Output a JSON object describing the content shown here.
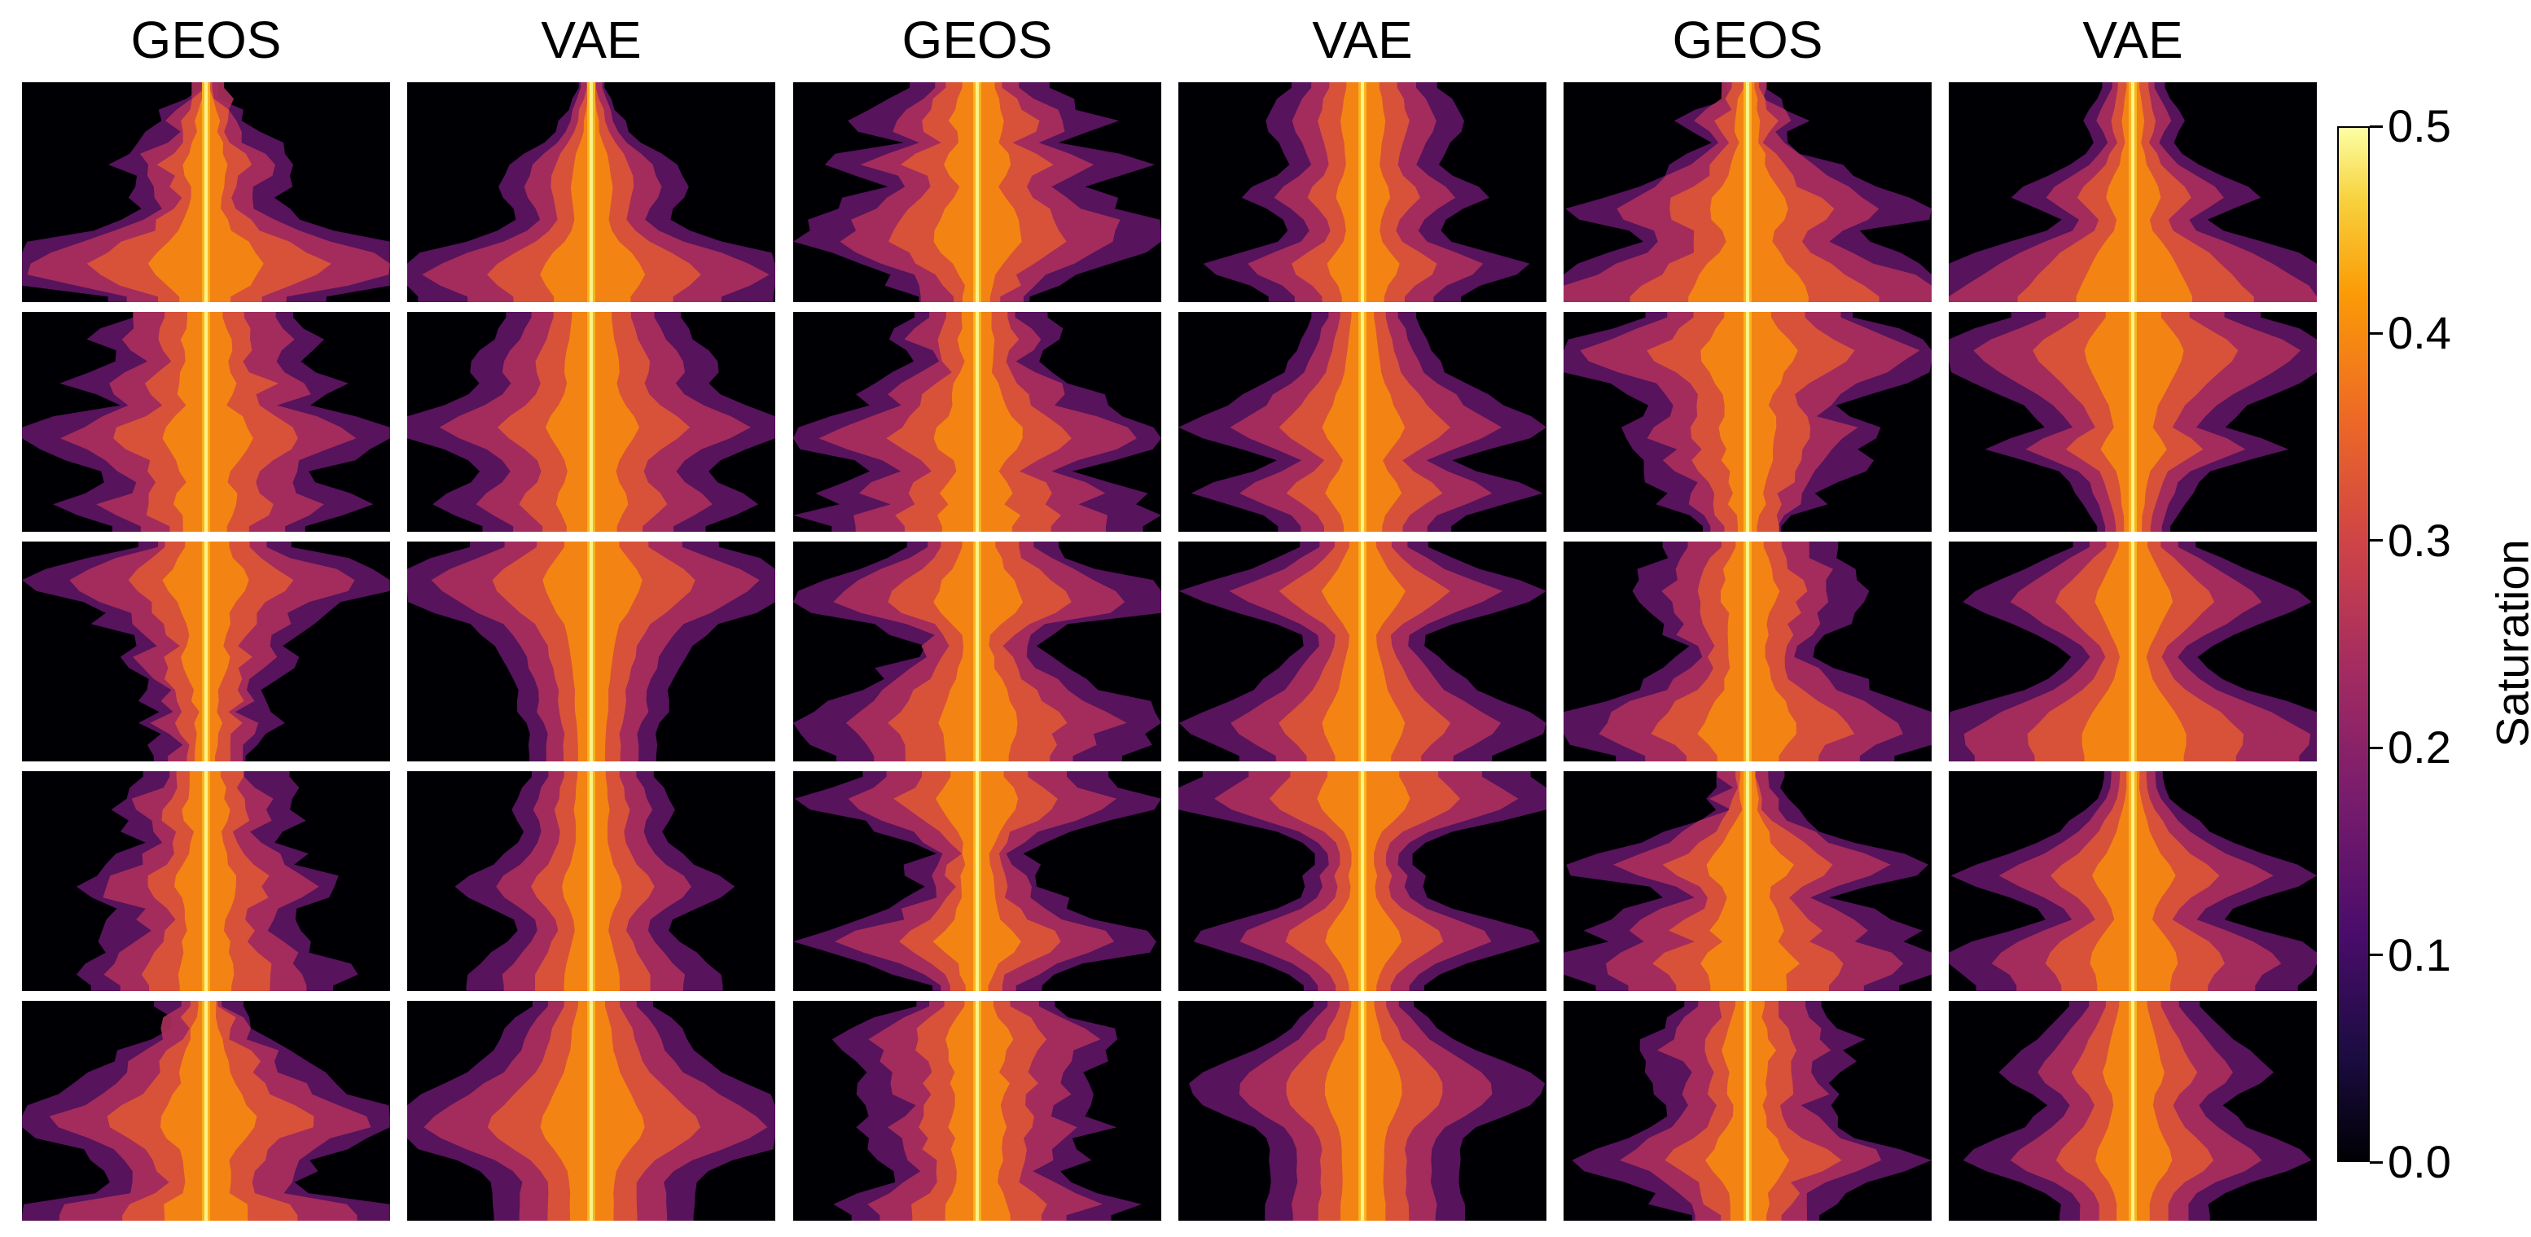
{
  "column_titles": [
    "GEOS",
    "VAE",
    "GEOS",
    "VAE",
    "GEOS",
    "VAE"
  ],
  "colorbar": {
    "label": "Saturation",
    "ticks": [
      "0.0",
      "0.1",
      "0.2",
      "0.3",
      "0.4",
      "0.5"
    ],
    "range": [
      0.0,
      0.5
    ],
    "colormap": "inferno"
  },
  "chart_data": {
    "type": "heatmap",
    "layout": {
      "rows": 5,
      "columns": 6
    },
    "colormap": "inferno",
    "value_range": [
      0.0,
      0.5
    ],
    "colorbar_label": "Saturation",
    "column_titles": [
      "GEOS",
      "VAE",
      "GEOS",
      "VAE",
      "GEOS",
      "VAE"
    ],
    "panels": [
      [
        {
          "model": "GEOS",
          "profile": [
            0.02,
            0.03,
            0.05,
            0.08,
            0.08,
            0.1,
            0.14,
            0.16,
            0.13,
            0.12,
            0.1,
            0.12,
            0.16,
            0.2,
            0.28,
            0.36,
            0.42,
            0.38,
            0.3,
            0.18
          ],
          "rough": true
        },
        {
          "model": "VAE",
          "profile": [
            0.02,
            0.03,
            0.04,
            0.05,
            0.06,
            0.08,
            0.11,
            0.13,
            0.14,
            0.15,
            0.14,
            0.13,
            0.12,
            0.15,
            0.2,
            0.28,
            0.34,
            0.38,
            0.34,
            0.28
          ],
          "rough": false
        },
        {
          "model": "GEOS",
          "profile": [
            0.1,
            0.14,
            0.16,
            0.2,
            0.18,
            0.14,
            0.22,
            0.26,
            0.2,
            0.16,
            0.2,
            0.24,
            0.28,
            0.3,
            0.32,
            0.26,
            0.2,
            0.15,
            0.12,
            0.1
          ],
          "rough": true
        },
        {
          "model": "VAE",
          "profile": [
            0.12,
            0.14,
            0.15,
            0.16,
            0.15,
            0.14,
            0.13,
            0.12,
            0.14,
            0.18,
            0.2,
            0.16,
            0.13,
            0.12,
            0.14,
            0.2,
            0.26,
            0.24,
            0.18,
            0.15
          ],
          "rough": false
        },
        {
          "model": "GEOS",
          "profile": [
            0.04,
            0.06,
            0.08,
            0.1,
            0.08,
            0.07,
            0.1,
            0.12,
            0.16,
            0.2,
            0.26,
            0.3,
            0.26,
            0.2,
            0.18,
            0.22,
            0.28,
            0.34,
            0.4,
            0.44
          ],
          "rough": true
        },
        {
          "model": "VAE",
          "profile": [
            0.05,
            0.06,
            0.07,
            0.08,
            0.07,
            0.06,
            0.08,
            0.1,
            0.14,
            0.18,
            0.2,
            0.16,
            0.12,
            0.14,
            0.2,
            0.26,
            0.3,
            0.34,
            0.38,
            0.42
          ],
          "rough": false
        }
      ],
      [
        {
          "model": "GEOS",
          "profile": [
            0.14,
            0.16,
            0.18,
            0.16,
            0.14,
            0.18,
            0.22,
            0.2,
            0.16,
            0.24,
            0.3,
            0.32,
            0.28,
            0.22,
            0.18,
            0.16,
            0.2,
            0.24,
            0.2,
            0.16
          ],
          "rough": true
        },
        {
          "model": "VAE",
          "profile": [
            0.14,
            0.15,
            0.16,
            0.18,
            0.2,
            0.2,
            0.18,
            0.2,
            0.24,
            0.3,
            0.34,
            0.3,
            0.24,
            0.2,
            0.18,
            0.2,
            0.24,
            0.26,
            0.22,
            0.18
          ],
          "rough": false
        },
        {
          "model": "GEOS",
          "profile": [
            0.1,
            0.12,
            0.14,
            0.12,
            0.1,
            0.12,
            0.16,
            0.2,
            0.18,
            0.24,
            0.3,
            0.34,
            0.28,
            0.2,
            0.16,
            0.22,
            0.26,
            0.22,
            0.3,
            0.26
          ],
          "rough": true
        },
        {
          "model": "VAE",
          "profile": [
            0.08,
            0.09,
            0.1,
            0.11,
            0.12,
            0.13,
            0.16,
            0.2,
            0.22,
            0.26,
            0.3,
            0.26,
            0.2,
            0.14,
            0.18,
            0.24,
            0.28,
            0.22,
            0.16,
            0.14
          ],
          "rough": false
        },
        {
          "model": "GEOS",
          "profile": [
            0.18,
            0.24,
            0.3,
            0.36,
            0.34,
            0.28,
            0.22,
            0.18,
            0.16,
            0.18,
            0.22,
            0.2,
            0.16,
            0.18,
            0.16,
            0.14,
            0.12,
            0.12,
            0.1,
            0.08
          ],
          "rough": true
        },
        {
          "model": "VAE",
          "profile": [
            0.2,
            0.26,
            0.32,
            0.36,
            0.34,
            0.3,
            0.26,
            0.22,
            0.18,
            0.16,
            0.14,
            0.2,
            0.24,
            0.18,
            0.12,
            0.1,
            0.09,
            0.08,
            0.07,
            0.06
          ],
          "rough": false
        }
      ],
      [
        {
          "model": "GEOS",
          "profile": [
            0.14,
            0.2,
            0.26,
            0.3,
            0.28,
            0.22,
            0.18,
            0.16,
            0.14,
            0.12,
            0.16,
            0.14,
            0.12,
            0.1,
            0.1,
            0.08,
            0.1,
            0.09,
            0.08,
            0.08
          ],
          "rough": true
        },
        {
          "model": "VAE",
          "profile": [
            0.2,
            0.26,
            0.32,
            0.36,
            0.34,
            0.3,
            0.26,
            0.2,
            0.18,
            0.16,
            0.15,
            0.14,
            0.13,
            0.12,
            0.12,
            0.12,
            0.11,
            0.1,
            0.1,
            0.1
          ],
          "rough": false
        },
        {
          "model": "GEOS",
          "profile": [
            0.12,
            0.16,
            0.2,
            0.26,
            0.3,
            0.34,
            0.26,
            0.16,
            0.12,
            0.1,
            0.12,
            0.14,
            0.16,
            0.2,
            0.24,
            0.28,
            0.3,
            0.28,
            0.26,
            0.24
          ],
          "rough": true
        },
        {
          "model": "VAE",
          "profile": [
            0.1,
            0.14,
            0.18,
            0.24,
            0.3,
            0.26,
            0.2,
            0.14,
            0.1,
            0.1,
            0.12,
            0.14,
            0.16,
            0.18,
            0.22,
            0.26,
            0.3,
            0.28,
            0.24,
            0.2
          ],
          "rough": false
        },
        {
          "model": "GEOS",
          "profile": [
            0.12,
            0.14,
            0.16,
            0.18,
            0.2,
            0.18,
            0.16,
            0.14,
            0.14,
            0.12,
            0.12,
            0.14,
            0.16,
            0.2,
            0.24,
            0.3,
            0.32,
            0.34,
            0.28,
            0.24
          ],
          "rough": true
        },
        {
          "model": "VAE",
          "profile": [
            0.1,
            0.14,
            0.18,
            0.22,
            0.26,
            0.28,
            0.24,
            0.2,
            0.16,
            0.12,
            0.1,
            0.12,
            0.14,
            0.18,
            0.24,
            0.3,
            0.34,
            0.38,
            0.38,
            0.36
          ],
          "rough": false
        }
      ],
      [
        {
          "model": "GEOS",
          "profile": [
            0.1,
            0.12,
            0.14,
            0.16,
            0.14,
            0.12,
            0.12,
            0.14,
            0.16,
            0.2,
            0.22,
            0.2,
            0.16,
            0.14,
            0.14,
            0.16,
            0.18,
            0.2,
            0.22,
            0.2
          ],
          "rough": true
        },
        {
          "model": "VAE",
          "profile": [
            0.1,
            0.11,
            0.12,
            0.13,
            0.12,
            0.11,
            0.12,
            0.14,
            0.16,
            0.2,
            0.22,
            0.2,
            0.16,
            0.13,
            0.12,
            0.14,
            0.16,
            0.18,
            0.2,
            0.2
          ],
          "rough": false
        },
        {
          "model": "GEOS",
          "profile": [
            0.2,
            0.24,
            0.28,
            0.26,
            0.2,
            0.14,
            0.1,
            0.08,
            0.1,
            0.12,
            0.1,
            0.12,
            0.14,
            0.18,
            0.26,
            0.3,
            0.24,
            0.16,
            0.12,
            0.1
          ],
          "rough": true
        },
        {
          "model": "VAE",
          "profile": [
            0.26,
            0.3,
            0.34,
            0.3,
            0.22,
            0.14,
            0.1,
            0.08,
            0.08,
            0.1,
            0.09,
            0.1,
            0.14,
            0.2,
            0.26,
            0.28,
            0.22,
            0.16,
            0.12,
            0.1
          ],
          "rough": false
        },
        {
          "model": "GEOS",
          "profile": [
            0.04,
            0.05,
            0.06,
            0.06,
            0.1,
            0.14,
            0.18,
            0.24,
            0.3,
            0.26,
            0.18,
            0.14,
            0.18,
            0.22,
            0.26,
            0.22,
            0.3,
            0.34,
            0.3,
            0.26
          ],
          "rough": true
        },
        {
          "model": "VAE",
          "profile": [
            0.05,
            0.05,
            0.06,
            0.08,
            0.1,
            0.12,
            0.16,
            0.2,
            0.26,
            0.3,
            0.26,
            0.2,
            0.16,
            0.14,
            0.2,
            0.26,
            0.3,
            0.32,
            0.28,
            0.26
          ],
          "rough": false
        }
      ],
      [
        {
          "model": "GEOS",
          "profile": [
            0.06,
            0.08,
            0.08,
            0.1,
            0.14,
            0.16,
            0.18,
            0.2,
            0.24,
            0.3,
            0.36,
            0.34,
            0.28,
            0.22,
            0.18,
            0.16,
            0.16,
            0.18,
            0.3,
            0.32
          ],
          "rough": true
        },
        {
          "model": "VAE",
          "profile": [
            0.1,
            0.12,
            0.14,
            0.15,
            0.16,
            0.18,
            0.2,
            0.24,
            0.28,
            0.32,
            0.36,
            0.38,
            0.34,
            0.28,
            0.22,
            0.18,
            0.16,
            0.16,
            0.16,
            0.16
          ],
          "rough": false
        },
        {
          "model": "GEOS",
          "profile": [
            0.12,
            0.16,
            0.2,
            0.24,
            0.22,
            0.2,
            0.18,
            0.2,
            0.18,
            0.16,
            0.18,
            0.2,
            0.16,
            0.18,
            0.16,
            0.14,
            0.16,
            0.2,
            0.24,
            0.22
          ],
          "rough": true
        },
        {
          "model": "VAE",
          "profile": [
            0.08,
            0.1,
            0.12,
            0.14,
            0.18,
            0.22,
            0.26,
            0.28,
            0.28,
            0.26,
            0.22,
            0.18,
            0.16,
            0.15,
            0.15,
            0.15,
            0.15,
            0.15,
            0.16,
            0.16
          ],
          "rough": false
        },
        {
          "model": "GEOS",
          "profile": [
            0.1,
            0.12,
            0.14,
            0.16,
            0.18,
            0.16,
            0.14,
            0.14,
            0.16,
            0.12,
            0.14,
            0.16,
            0.2,
            0.26,
            0.3,
            0.24,
            0.18,
            0.16,
            0.14,
            0.12
          ],
          "rough": true
        },
        {
          "model": "VAE",
          "profile": [
            0.1,
            0.12,
            0.14,
            0.16,
            0.18,
            0.2,
            0.22,
            0.2,
            0.16,
            0.14,
            0.16,
            0.18,
            0.22,
            0.26,
            0.28,
            0.24,
            0.18,
            0.14,
            0.12,
            0.12
          ],
          "rough": false
        }
      ]
    ]
  }
}
